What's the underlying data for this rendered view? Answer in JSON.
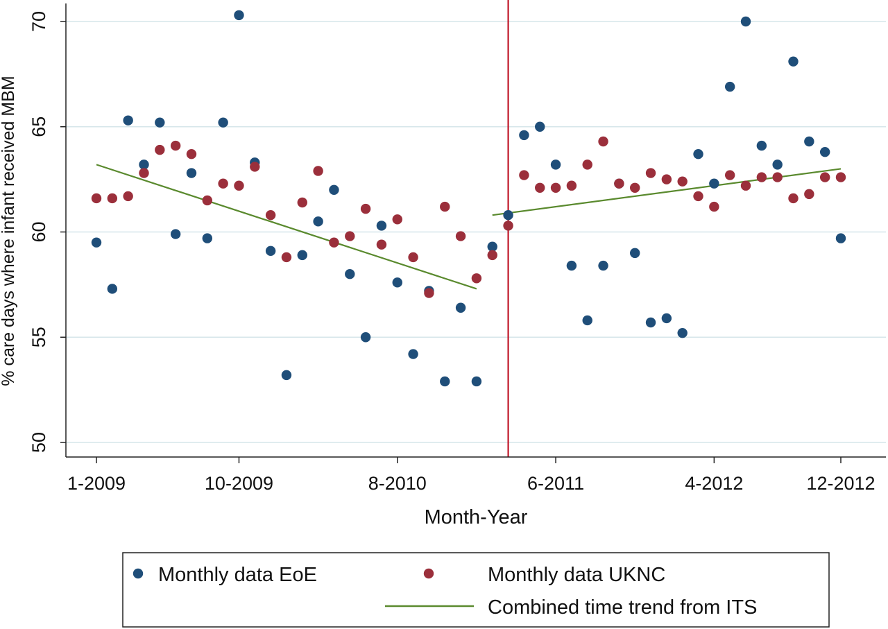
{
  "chart_data": {
    "type": "scatter",
    "xlabel": "Month-Year",
    "ylabel": "% care days where infant received MBM",
    "ylim": [
      50,
      70
    ],
    "y_ticks": [
      50,
      55,
      60,
      65,
      70
    ],
    "x_range": [
      1,
      48
    ],
    "x_ticks": [
      {
        "index": 1,
        "label": "1-2009"
      },
      {
        "index": 10,
        "label": "10-2009"
      },
      {
        "index": 20,
        "label": "8-2010"
      },
      {
        "index": 30,
        "label": "6-2011"
      },
      {
        "index": 40,
        "label": "4-2012"
      },
      {
        "index": 48,
        "label": "12-2012"
      }
    ],
    "intervention_x": 27,
    "grid": true,
    "legend_position": "bottom",
    "series": [
      {
        "name": "Monthly data EoE",
        "color": "#1f4e79",
        "kind": "points",
        "x": [
          1,
          2,
          3,
          4,
          5,
          6,
          7,
          8,
          9,
          10,
          11,
          12,
          13,
          14,
          15,
          16,
          17,
          18,
          19,
          20,
          21,
          22,
          23,
          24,
          25,
          26,
          27,
          28,
          29,
          30,
          31,
          32,
          33,
          34,
          35,
          36,
          37,
          38,
          39,
          40,
          41,
          42,
          43,
          44,
          45,
          46,
          47,
          48
        ],
        "y": [
          59.5,
          57.3,
          65.3,
          63.2,
          65.2,
          59.9,
          62.8,
          59.7,
          65.2,
          70.3,
          63.3,
          59.1,
          53.2,
          58.9,
          60.5,
          62.0,
          58.0,
          55.0,
          60.3,
          57.6,
          54.2,
          57.2,
          52.9,
          56.4,
          52.9,
          59.3,
          60.8,
          64.6,
          65.0,
          63.2,
          58.4,
          55.8,
          58.4,
          62.3,
          59.0,
          55.7,
          55.9,
          55.2,
          63.7,
          62.3,
          66.9,
          70.0,
          64.1,
          63.2,
          68.1,
          64.3,
          63.8,
          59.7
        ]
      },
      {
        "name": "Monthly data UKNC",
        "color": "#9b2f3b",
        "kind": "points",
        "x": [
          1,
          2,
          3,
          4,
          5,
          6,
          7,
          8,
          9,
          10,
          11,
          12,
          13,
          14,
          15,
          16,
          17,
          18,
          19,
          20,
          21,
          22,
          23,
          24,
          25,
          26,
          27,
          28,
          29,
          30,
          31,
          32,
          33,
          34,
          35,
          36,
          37,
          38,
          39,
          40,
          41,
          42,
          43,
          44,
          45,
          46,
          47,
          48
        ],
        "y": [
          61.6,
          61.6,
          61.7,
          62.8,
          63.9,
          64.1,
          63.7,
          61.5,
          62.3,
          62.2,
          63.1,
          60.8,
          58.8,
          61.4,
          62.9,
          59.5,
          59.8,
          61.1,
          59.4,
          60.6,
          58.8,
          57.1,
          61.2,
          59.8,
          57.8,
          58.9,
          60.3,
          62.7,
          62.1,
          62.1,
          62.2,
          63.2,
          64.3,
          62.3,
          62.1,
          62.8,
          62.5,
          62.4,
          61.7,
          61.2,
          62.7,
          62.2,
          62.6,
          62.6,
          61.6,
          61.8,
          62.6,
          62.6
        ]
      },
      {
        "name": "Combined time trend from ITS",
        "color": "#5a8a2e",
        "kind": "line",
        "segments": [
          {
            "x": [
              1,
              25
            ],
            "y": [
              63.2,
              57.3
            ]
          },
          {
            "x": [
              26,
              48
            ],
            "y": [
              60.8,
              63.0
            ]
          }
        ]
      }
    ]
  },
  "legend": {
    "items": [
      {
        "label": "Monthly data EoE",
        "color": "#1f4e79",
        "kind": "dot"
      },
      {
        "label": "Monthly data UKNC",
        "color": "#9b2f3b",
        "kind": "dot"
      },
      {
        "label": "Combined time trend from ITS",
        "color": "#5a8a2e",
        "kind": "line"
      }
    ]
  },
  "colors": {
    "axis": "#222222",
    "grid": "#d6e6ea",
    "intervention_line": "#c0182a"
  }
}
